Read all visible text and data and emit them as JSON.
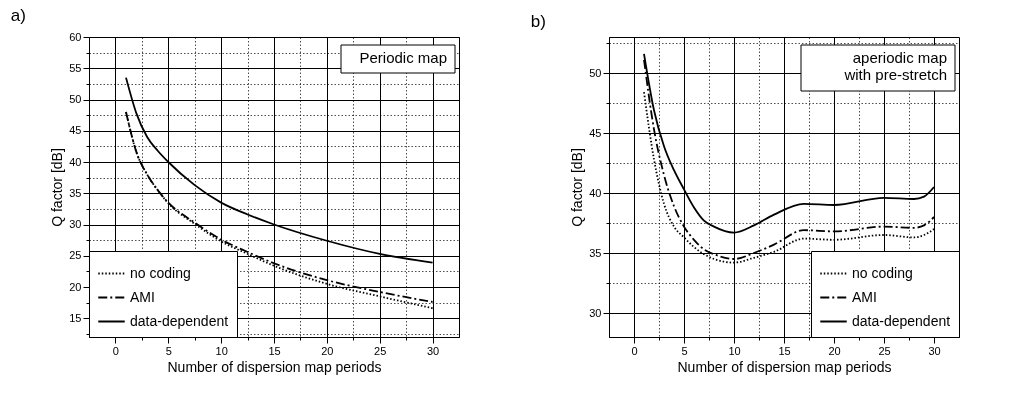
{
  "chart_data": [
    {
      "type": "line",
      "title": "a)",
      "xlabel": "Number of dispersion map periods",
      "ylabel": "Q factor [dB]",
      "annotations": [
        "Periodic map"
      ],
      "legend": "bottom left",
      "grid": true,
      "xlim": [
        -2.5,
        32.5
      ],
      "xticks": [
        0,
        {
          "value": 2.5,
          "label": null
        },
        5,
        {
          "value": 7.5,
          "label": null
        },
        10,
        {
          "value": 12.5,
          "label": null
        },
        15,
        {
          "value": 17.5,
          "label": null
        },
        20,
        {
          "value": 22.5,
          "label": null
        },
        25,
        {
          "value": 27.5,
          "label": null
        },
        30
      ],
      "ylim": [
        12,
        60
      ],
      "yticks": [
        {
          "value": 12.5,
          "label": null
        },
        15,
        {
          "value": 17.5,
          "label": null
        },
        20,
        {
          "value": 22.5,
          "label": null
        },
        25,
        {
          "value": 27.5,
          "label": null
        },
        30,
        {
          "value": 32.5,
          "label": null
        },
        35,
        {
          "value": 37.5,
          "label": null
        },
        40,
        {
          "value": 42.5,
          "label": null
        },
        45,
        {
          "value": 47.5,
          "label": null
        },
        50,
        {
          "value": 52.5,
          "label": null
        },
        55,
        {
          "value": 57.5,
          "label": null
        },
        60
      ],
      "x": [
        1,
        2,
        3,
        4,
        5,
        7.5,
        10,
        12.5,
        15,
        20,
        25,
        30
      ],
      "series": [
        {
          "name": "no coding",
          "color": "#000000",
          "line_style": "dotted",
          "values": [
            48,
            41.5,
            38,
            35.5,
            33.4,
            30.1,
            27.3,
            25.3,
            23.4,
            20.5,
            18.5,
            16.6
          ]
        },
        {
          "name": "AMI",
          "color": "#000000",
          "line_style": "dashed",
          "values": [
            48,
            41.5,
            38,
            35.5,
            33.5,
            30.3,
            27.6,
            25.6,
            23.8,
            21.1,
            19.2,
            17.6
          ]
        },
        {
          "name": "data-dependent",
          "color": "#000000",
          "line_style": "solid",
          "values": [
            53.5,
            47.7,
            44,
            41.8,
            40,
            36.3,
            33.5,
            31.6,
            30,
            27.4,
            25.3,
            23.9
          ]
        }
      ]
    },
    {
      "type": "line",
      "title": "b)",
      "xlabel": "Number of dispersion map periods",
      "ylabel": "Q factor [dB]",
      "annotations": [
        "aperiodic map\n with pre-stretch"
      ],
      "legend": "bottom right",
      "grid": true,
      "xlim": [
        -2.5,
        32.5
      ],
      "xticks": [
        0,
        {
          "value": 2.5,
          "label": null
        },
        5,
        {
          "value": 7.5,
          "label": null
        },
        10,
        {
          "value": 12.5,
          "label": null
        },
        15,
        {
          "value": 17.5,
          "label": null
        },
        20,
        {
          "value": 22.5,
          "label": null
        },
        25,
        {
          "value": 27.5,
          "label": null
        },
        30
      ],
      "ylim": [
        28,
        53
      ],
      "yticks": [
        30,
        {
          "value": 32.5,
          "label": null
        },
        35,
        {
          "value": 37.5,
          "label": null
        },
        40,
        {
          "value": 42.5,
          "label": null
        },
        45,
        {
          "value": 47.5,
          "label": null
        },
        50,
        {
          "value": 52.5,
          "label": null
        }
      ],
      "x": [
        1,
        2,
        3,
        4,
        5,
        6,
        7,
        8,
        10,
        12,
        14,
        17,
        20,
        25,
        28,
        29,
        30
      ],
      "series": [
        {
          "name": "no coding",
          "color": "#000000",
          "line_style": "dotted",
          "values": [
            48.4,
            42.8,
            39.1,
            37.2,
            36.3,
            35.5,
            34.9,
            34.5,
            34.2,
            34.6,
            35.1,
            36.2,
            36.1,
            36.5,
            36.3,
            36.5,
            37
          ]
        },
        {
          "name": "AMI",
          "color": "#000000",
          "line_style": "dashed",
          "values": [
            51.1,
            45.3,
            41.5,
            38.9,
            37.2,
            36.1,
            35.3,
            34.9,
            34.5,
            35,
            35.7,
            36.9,
            36.8,
            37.2,
            37.1,
            37.3,
            38
          ]
        },
        {
          "name": "data-dependent",
          "color": "#000000",
          "line_style": "solid",
          "values": [
            51.6,
            46.9,
            43.9,
            41.9,
            40.3,
            38.8,
            37.7,
            37.2,
            36.7,
            37.3,
            38.2,
            39.1,
            39,
            39.6,
            39.5,
            39.7,
            40.5
          ]
        }
      ]
    }
  ]
}
